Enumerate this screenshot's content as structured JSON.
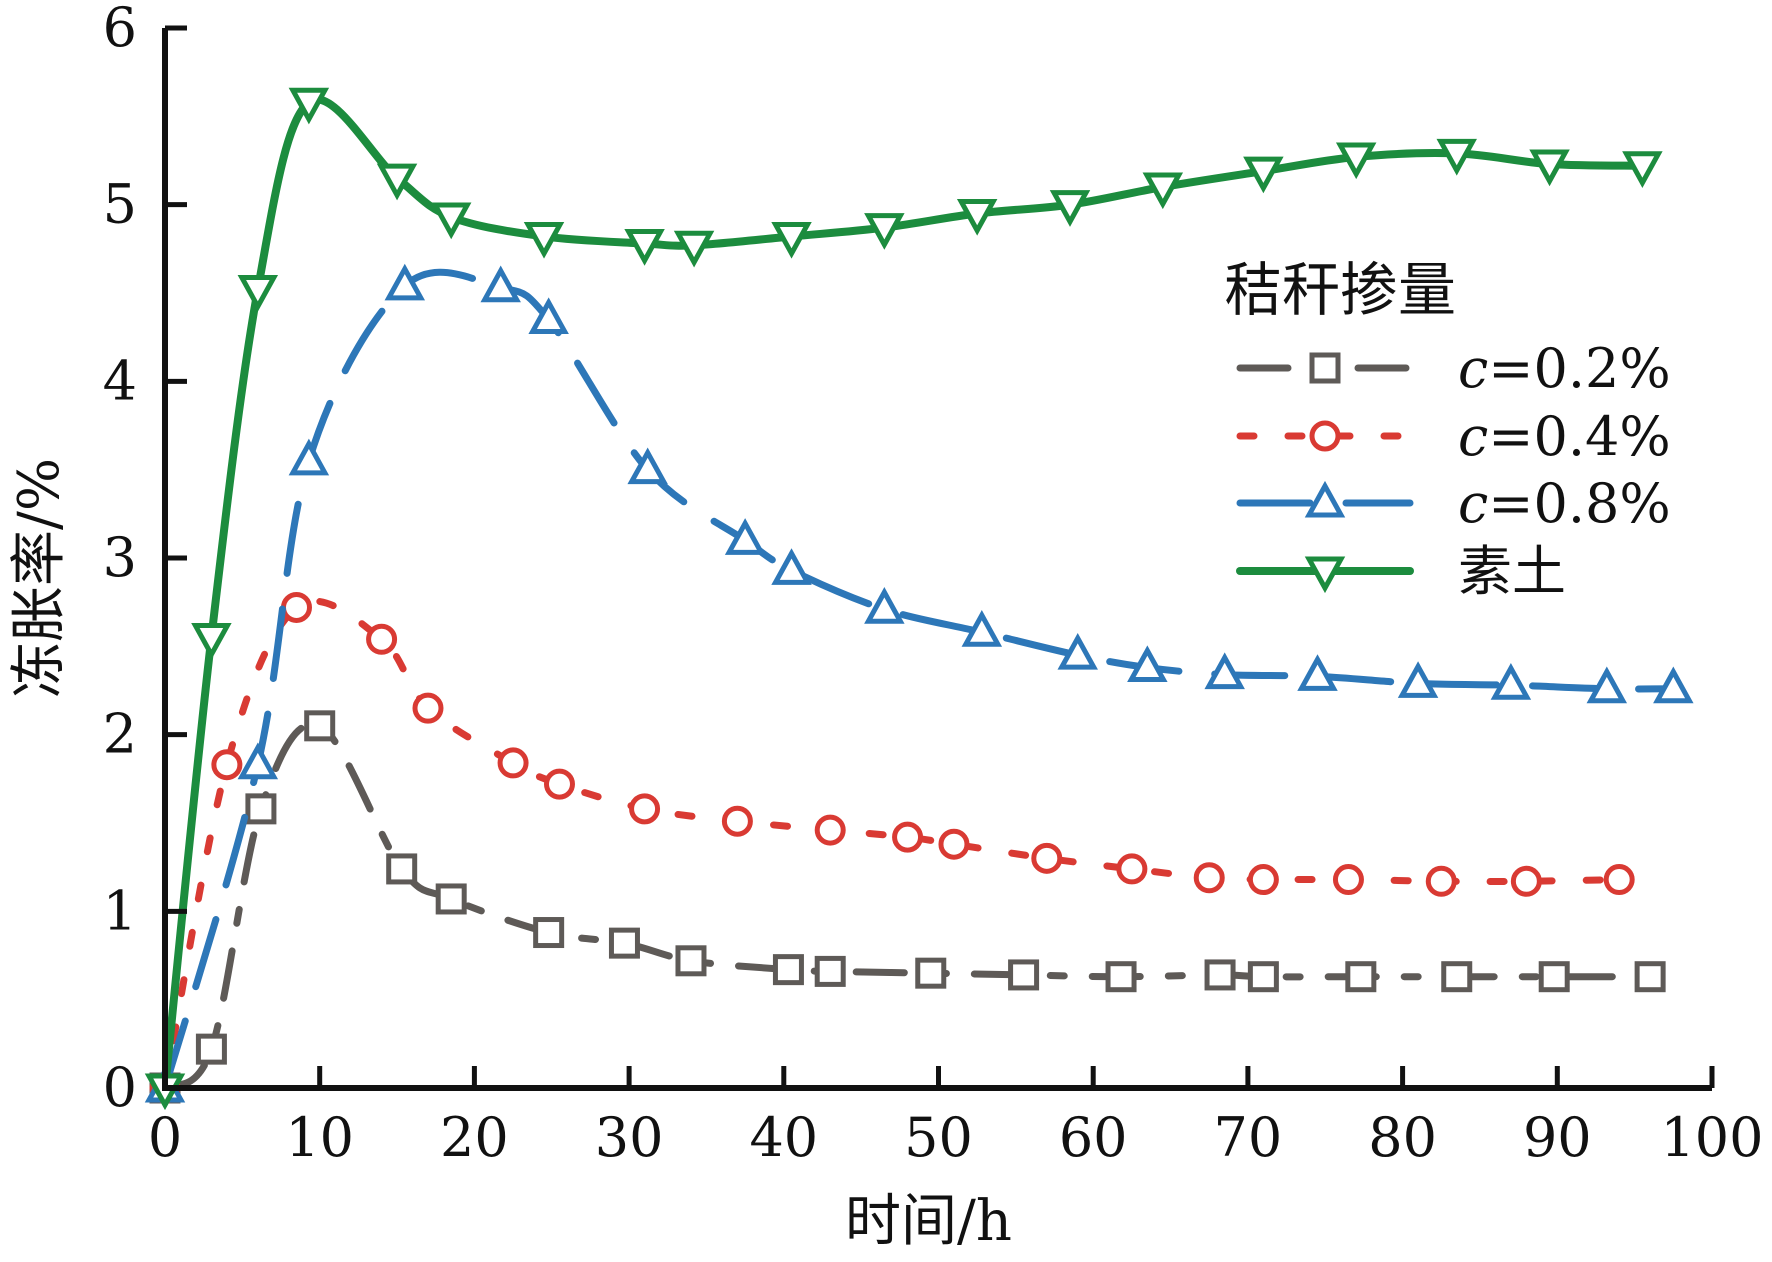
{
  "chart_data": {
    "type": "line",
    "xlabel": "时间/h",
    "ylabel": "冻胀率/%",
    "xlim": [
      0,
      100
    ],
    "ylim": [
      0,
      6
    ],
    "xticks": [
      0,
      10,
      20,
      30,
      40,
      50,
      60,
      70,
      80,
      90,
      100
    ],
    "yticks": [
      0,
      1,
      2,
      3,
      4,
      5,
      6
    ],
    "legend": {
      "title": "秸秆掺量",
      "position": "right"
    },
    "series": [
      {
        "name": "c=0.2%",
        "name_italic": "c",
        "name_rest": "=0.2%",
        "color": "#5e5a57",
        "marker": "square",
        "dash": "dash-dot",
        "x": [
          0,
          3,
          6.2,
          10,
          15.3,
          18.5,
          24.8,
          29.7,
          34,
          40.3,
          43,
          49.5,
          55.5,
          61.8,
          68.2,
          71,
          77.3,
          83.5,
          89.8,
          96
        ],
        "y": [
          0,
          0.22,
          1.58,
          2.05,
          1.24,
          1.07,
          0.88,
          0.82,
          0.72,
          0.67,
          0.66,
          0.65,
          0.64,
          0.63,
          0.64,
          0.63,
          0.63,
          0.63,
          0.63,
          0.63
        ]
      },
      {
        "name": "c=0.4%",
        "name_italic": "c",
        "name_rest": "=0.4%",
        "color": "#d93a33",
        "marker": "circle",
        "dash": "dot",
        "x": [
          0,
          4,
          8.5,
          14,
          17,
          22.5,
          25.5,
          31,
          37,
          43,
          48,
          51,
          57,
          62.5,
          67.5,
          71,
          76.5,
          82.5,
          88,
          94
        ],
        "y": [
          0,
          1.83,
          2.72,
          2.54,
          2.15,
          1.84,
          1.72,
          1.58,
          1.51,
          1.46,
          1.42,
          1.38,
          1.3,
          1.24,
          1.19,
          1.18,
          1.18,
          1.17,
          1.17,
          1.18
        ]
      },
      {
        "name": "c=0.8%",
        "name_italic": "c",
        "name_rest": "=0.8%",
        "color": "#2d77b8",
        "marker": "triangle-up",
        "dash": "long-dash",
        "x": [
          0,
          6,
          9.3,
          15.5,
          21.7,
          24.8,
          31.2,
          37.5,
          40.5,
          46.5,
          52.8,
          59,
          63.5,
          68.5,
          74.5,
          81,
          87,
          93.2,
          97.5
        ],
        "y": [
          0,
          1.83,
          3.55,
          4.54,
          4.53,
          4.35,
          3.5,
          3.1,
          2.93,
          2.71,
          2.58,
          2.45,
          2.38,
          2.34,
          2.33,
          2.29,
          2.28,
          2.26,
          2.26
        ]
      },
      {
        "name": "素土",
        "color": "#1c8c3e",
        "marker": "triangle-down",
        "dash": "solid",
        "x": [
          0,
          3,
          6,
          9.3,
          15,
          18.5,
          24.5,
          31,
          34.2,
          40.5,
          46.5,
          52.5,
          58.5,
          64.5,
          71,
          77,
          83.5,
          89.5,
          95.5
        ],
        "y": [
          0,
          2.55,
          4.52,
          5.58,
          5.15,
          4.93,
          4.82,
          4.78,
          4.77,
          4.82,
          4.87,
          4.95,
          5,
          5.1,
          5.19,
          5.27,
          5.29,
          5.23,
          5.22
        ]
      }
    ]
  }
}
